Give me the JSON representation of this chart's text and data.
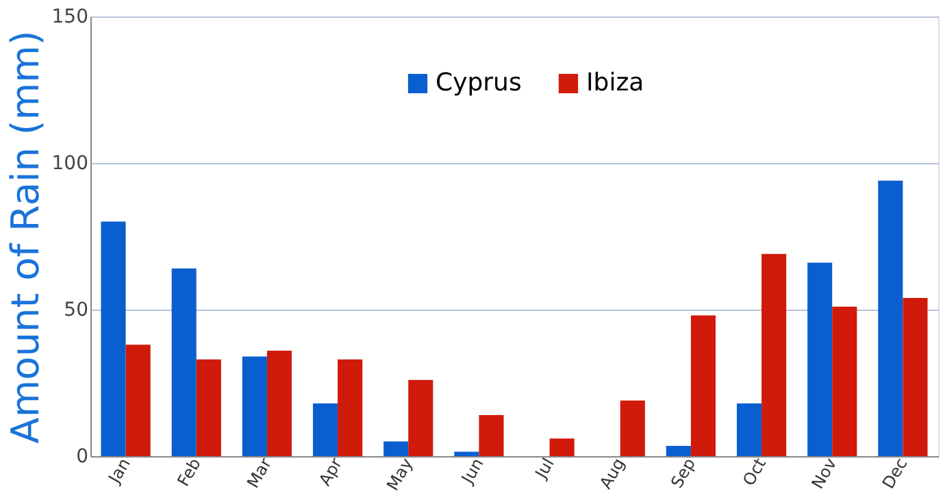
{
  "chart_data": {
    "type": "bar",
    "ylabel": "Amount of Rain (mm)",
    "categories": [
      "Jan",
      "Feb",
      "Mar",
      "Apr",
      "May",
      "Jun",
      "Jul",
      "Aug",
      "Sep",
      "Oct",
      "Nov",
      "Dec"
    ],
    "series": [
      {
        "name": "Cyprus",
        "color": "#0a5fd0",
        "values": [
          80,
          64,
          34,
          18,
          5,
          1.5,
          0,
          0,
          3.5,
          18,
          66,
          94
        ]
      },
      {
        "name": "Ibiza",
        "color": "#d01a0a",
        "values": [
          38,
          33,
          36,
          33,
          26,
          14,
          6,
          19,
          48,
          69,
          51,
          54
        ]
      }
    ],
    "ylim": [
      0,
      150
    ],
    "yticks": [
      0,
      50,
      100,
      150
    ],
    "grid": "y",
    "legend": "top"
  }
}
